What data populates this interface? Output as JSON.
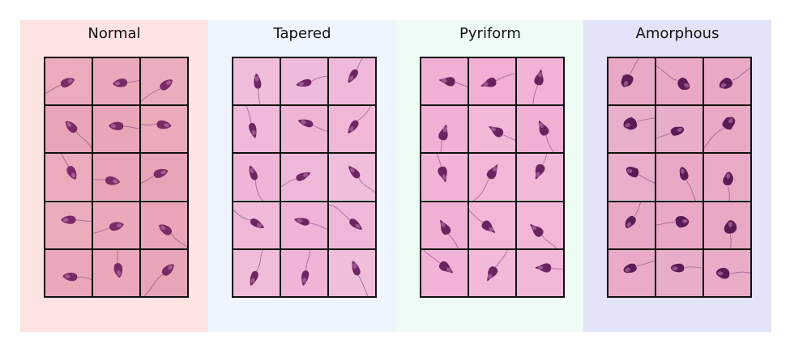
{
  "panels": [
    {
      "key": "normal",
      "title": "Normal",
      "background": "#fde3e1",
      "cell_tint": "#e8a3b6",
      "head_color": "#7a2a66",
      "shape": "normal",
      "rows": 5,
      "cols": 3
    },
    {
      "key": "tapered",
      "title": "Tapered",
      "background": "#eef5fe",
      "cell_tint": "#f0b3d5",
      "head_color": "#6e2563",
      "shape": "tapered",
      "rows": 5,
      "cols": 3
    },
    {
      "key": "pyriform",
      "title": "Pyriform",
      "background": "#effcf6",
      "cell_tint": "#f2aed3",
      "head_color": "#6b2360",
      "shape": "pyriform",
      "rows": 5,
      "cols": 3
    },
    {
      "key": "amorphous",
      "title": "Amorphous",
      "background": "#e3e3f9",
      "cell_tint": "#e9a6c4",
      "head_color": "#5a1c55",
      "shape": "amorphous",
      "rows": 5,
      "cols": 3
    }
  ]
}
